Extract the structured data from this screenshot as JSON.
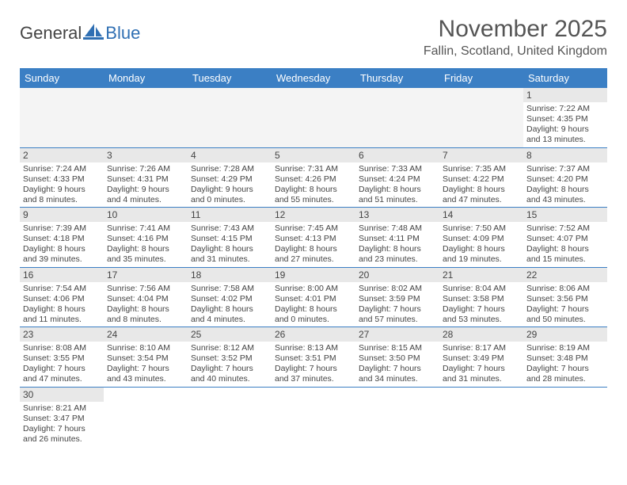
{
  "logo": {
    "text1": "General",
    "text2": "Blue",
    "color_blue": "#2f6fb3",
    "color_gray": "#555555"
  },
  "title": "November 2025",
  "location": "Fallin, Scotland, United Kingdom",
  "header_bg": "#3b7fc4",
  "header_fg": "#ffffff",
  "row_divider": "#3b7fc4",
  "daynum_bg": "#e8e8e8",
  "text_color": "#444444",
  "body_bg": "#ffffff",
  "font_family": "Arial",
  "title_fontsize": 30,
  "location_fontsize": 16,
  "header_fontsize": 13,
  "content_fontsize": 10.5,
  "day_headers": [
    "Sunday",
    "Monday",
    "Tuesday",
    "Wednesday",
    "Thursday",
    "Friday",
    "Saturday"
  ],
  "weeks": [
    [
      null,
      null,
      null,
      null,
      null,
      null,
      {
        "n": "1",
        "sr": "7:22 AM",
        "ss": "4:35 PM",
        "dl": "9 hours and 13 minutes."
      }
    ],
    [
      {
        "n": "2",
        "sr": "7:24 AM",
        "ss": "4:33 PM",
        "dl": "9 hours and 8 minutes."
      },
      {
        "n": "3",
        "sr": "7:26 AM",
        "ss": "4:31 PM",
        "dl": "9 hours and 4 minutes."
      },
      {
        "n": "4",
        "sr": "7:28 AM",
        "ss": "4:29 PM",
        "dl": "9 hours and 0 minutes."
      },
      {
        "n": "5",
        "sr": "7:31 AM",
        "ss": "4:26 PM",
        "dl": "8 hours and 55 minutes."
      },
      {
        "n": "6",
        "sr": "7:33 AM",
        "ss": "4:24 PM",
        "dl": "8 hours and 51 minutes."
      },
      {
        "n": "7",
        "sr": "7:35 AM",
        "ss": "4:22 PM",
        "dl": "8 hours and 47 minutes."
      },
      {
        "n": "8",
        "sr": "7:37 AM",
        "ss": "4:20 PM",
        "dl": "8 hours and 43 minutes."
      }
    ],
    [
      {
        "n": "9",
        "sr": "7:39 AM",
        "ss": "4:18 PM",
        "dl": "8 hours and 39 minutes."
      },
      {
        "n": "10",
        "sr": "7:41 AM",
        "ss": "4:16 PM",
        "dl": "8 hours and 35 minutes."
      },
      {
        "n": "11",
        "sr": "7:43 AM",
        "ss": "4:15 PM",
        "dl": "8 hours and 31 minutes."
      },
      {
        "n": "12",
        "sr": "7:45 AM",
        "ss": "4:13 PM",
        "dl": "8 hours and 27 minutes."
      },
      {
        "n": "13",
        "sr": "7:48 AM",
        "ss": "4:11 PM",
        "dl": "8 hours and 23 minutes."
      },
      {
        "n": "14",
        "sr": "7:50 AM",
        "ss": "4:09 PM",
        "dl": "8 hours and 19 minutes."
      },
      {
        "n": "15",
        "sr": "7:52 AM",
        "ss": "4:07 PM",
        "dl": "8 hours and 15 minutes."
      }
    ],
    [
      {
        "n": "16",
        "sr": "7:54 AM",
        "ss": "4:06 PM",
        "dl": "8 hours and 11 minutes."
      },
      {
        "n": "17",
        "sr": "7:56 AM",
        "ss": "4:04 PM",
        "dl": "8 hours and 8 minutes."
      },
      {
        "n": "18",
        "sr": "7:58 AM",
        "ss": "4:02 PM",
        "dl": "8 hours and 4 minutes."
      },
      {
        "n": "19",
        "sr": "8:00 AM",
        "ss": "4:01 PM",
        "dl": "8 hours and 0 minutes."
      },
      {
        "n": "20",
        "sr": "8:02 AM",
        "ss": "3:59 PM",
        "dl": "7 hours and 57 minutes."
      },
      {
        "n": "21",
        "sr": "8:04 AM",
        "ss": "3:58 PM",
        "dl": "7 hours and 53 minutes."
      },
      {
        "n": "22",
        "sr": "8:06 AM",
        "ss": "3:56 PM",
        "dl": "7 hours and 50 minutes."
      }
    ],
    [
      {
        "n": "23",
        "sr": "8:08 AM",
        "ss": "3:55 PM",
        "dl": "7 hours and 47 minutes."
      },
      {
        "n": "24",
        "sr": "8:10 AM",
        "ss": "3:54 PM",
        "dl": "7 hours and 43 minutes."
      },
      {
        "n": "25",
        "sr": "8:12 AM",
        "ss": "3:52 PM",
        "dl": "7 hours and 40 minutes."
      },
      {
        "n": "26",
        "sr": "8:13 AM",
        "ss": "3:51 PM",
        "dl": "7 hours and 37 minutes."
      },
      {
        "n": "27",
        "sr": "8:15 AM",
        "ss": "3:50 PM",
        "dl": "7 hours and 34 minutes."
      },
      {
        "n": "28",
        "sr": "8:17 AM",
        "ss": "3:49 PM",
        "dl": "7 hours and 31 minutes."
      },
      {
        "n": "29",
        "sr": "8:19 AM",
        "ss": "3:48 PM",
        "dl": "7 hours and 28 minutes."
      }
    ],
    [
      {
        "n": "30",
        "sr": "8:21 AM",
        "ss": "3:47 PM",
        "dl": "7 hours and 26 minutes."
      },
      null,
      null,
      null,
      null,
      null,
      null
    ]
  ],
  "labels": {
    "sunrise": "Sunrise:",
    "sunset": "Sunset:",
    "daylight": "Daylight:"
  }
}
